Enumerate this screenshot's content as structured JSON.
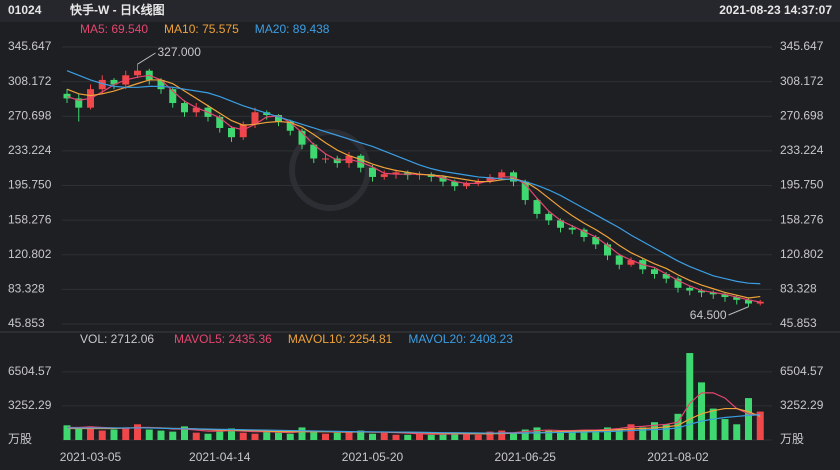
{
  "header": {
    "code": "01024",
    "title": "快手-W - 日K线图",
    "timestamp": "2021-08-23 14:37:07"
  },
  "chart_data": [
    {
      "type": "candlestick",
      "categories": [
        null,
        null,
        "2021-03-05",
        null,
        null,
        null,
        null,
        null,
        null,
        null,
        null,
        null,
        null,
        "2021-04-14",
        null,
        null,
        null,
        null,
        null,
        null,
        null,
        null,
        null,
        null,
        null,
        null,
        "2021-05-20",
        null,
        null,
        null,
        null,
        null,
        null,
        null,
        null,
        null,
        null,
        null,
        null,
        "2021-06-25",
        null,
        null,
        null,
        null,
        null,
        null,
        null,
        null,
        null,
        null,
        null,
        null,
        "2021-08-02",
        null,
        null,
        null,
        null,
        null,
        null,
        null
      ],
      "open": [
        295,
        290,
        280,
        300,
        310,
        305,
        315,
        320,
        310,
        300,
        285,
        275,
        280,
        270,
        258,
        248,
        262,
        275,
        272,
        265,
        255,
        240,
        225,
        225,
        220,
        228,
        215,
        205,
        208,
        210,
        207,
        208,
        205,
        200,
        195,
        198,
        200,
        205,
        210,
        200,
        180,
        165,
        158,
        150,
        148,
        140,
        132,
        120,
        110,
        115,
        105,
        100,
        95,
        85,
        82,
        80,
        78,
        75,
        72,
        68
      ],
      "high": [
        300,
        295,
        305,
        315,
        312,
        320,
        327,
        322,
        312,
        302,
        288,
        285,
        283,
        272,
        260,
        265,
        280,
        277,
        273,
        267,
        257,
        242,
        230,
        228,
        232,
        230,
        218,
        212,
        213,
        212,
        211,
        210,
        207,
        202,
        200,
        203,
        208,
        213,
        212,
        202,
        182,
        167,
        160,
        153,
        150,
        142,
        134,
        122,
        118,
        117,
        107,
        102,
        97,
        87,
        84,
        82,
        80,
        77,
        74,
        72
      ],
      "low": [
        285,
        265,
        278,
        295,
        300,
        300,
        312,
        305,
        295,
        280,
        270,
        270,
        265,
        253,
        243,
        245,
        258,
        267,
        260,
        250,
        235,
        220,
        220,
        215,
        215,
        210,
        200,
        202,
        203,
        202,
        202,
        200,
        195,
        190,
        192,
        195,
        198,
        203,
        195,
        175,
        160,
        153,
        145,
        143,
        135,
        127,
        115,
        105,
        108,
        100,
        95,
        90,
        80,
        77,
        75,
        73,
        70,
        67,
        64.5,
        66
      ],
      "close": [
        290,
        280,
        300,
        310,
        305,
        315,
        320,
        310,
        300,
        285,
        275,
        280,
        270,
        258,
        248,
        262,
        275,
        272,
        265,
        255,
        240,
        225,
        225,
        220,
        228,
        215,
        205,
        208,
        210,
        207,
        208,
        205,
        200,
        195,
        198,
        200,
        205,
        210,
        200,
        180,
        165,
        158,
        150,
        148,
        140,
        132,
        120,
        110,
        115,
        105,
        100,
        95,
        85,
        82,
        80,
        78,
        75,
        72,
        68,
        70
      ],
      "up_color": "#f0474a",
      "down_color": "#3fd76f",
      "series": [
        {
          "label": "MA5: 69.540",
          "color": "#e5466f",
          "values": [
            292,
            288,
            290,
            297,
            305,
            310,
            313,
            315,
            310,
            298,
            287,
            280,
            275,
            269,
            259,
            256,
            262,
            270,
            271,
            264,
            253,
            240,
            230,
            223,
            224,
            221,
            216,
            209,
            208,
            208,
            208,
            207,
            204,
            200,
            198,
            198,
            201,
            205,
            205,
            197,
            182,
            168,
            158,
            152,
            146,
            140,
            131,
            121,
            115,
            110,
            107,
            100,
            93,
            87,
            82,
            80,
            78,
            75,
            72,
            69.54
          ]
        },
        {
          "label": "MA10: 75.575",
          "color": "#f0a23a",
          "values": [
            300,
            295,
            293,
            295,
            298,
            302,
            306,
            310,
            310,
            306,
            298,
            290,
            282,
            274,
            266,
            261,
            262,
            264,
            265,
            264,
            259,
            251,
            242,
            234,
            228,
            224,
            219,
            215,
            212,
            210,
            208,
            207,
            206,
            204,
            202,
            200,
            200,
            202,
            203,
            200,
            192,
            182,
            172,
            163,
            155,
            148,
            140,
            131,
            123,
            117,
            111,
            106,
            99,
            93,
            88,
            84,
            80,
            77,
            74,
            75.575
          ]
        },
        {
          "label": "MA20: 89.438",
          "color": "#3b9ee3",
          "values": [
            320,
            315,
            310,
            306,
            303,
            302,
            302,
            303,
            303,
            302,
            300,
            298,
            296,
            292,
            287,
            282,
            278,
            274,
            270,
            266,
            262,
            258,
            254,
            250,
            246,
            242,
            238,
            233,
            228,
            223,
            218,
            214,
            211,
            209,
            207,
            205,
            204,
            203,
            202,
            200,
            196,
            191,
            185,
            178,
            171,
            164,
            157,
            150,
            142,
            135,
            128,
            121,
            114,
            108,
            103,
            98,
            95,
            92,
            90,
            89.438
          ]
        }
      ],
      "annotations": [
        "327.000",
        "64.500"
      ],
      "ylim": [
        45.853,
        345.647
      ],
      "yticks": [
        345.647,
        308.172,
        270.698,
        233.224,
        {
          "value": 195.75,
          "label": "195.750"
        },
        158.276,
        120.802,
        83.328,
        45.853
      ],
      "grid": true
    },
    {
      "type": "bar",
      "vol_label": "VOL: 2712.06",
      "values": [
        1400,
        1100,
        1300,
        900,
        1000,
        1200,
        1500,
        1000,
        900,
        800,
        1300,
        700,
        600,
        900,
        1100,
        700,
        600,
        800,
        700,
        600,
        1200,
        900,
        600,
        700,
        800,
        900,
        600,
        700,
        500,
        500,
        600,
        500,
        600,
        700,
        600,
        500,
        800,
        900,
        700,
        1000,
        1200,
        900,
        800,
        800,
        900,
        1000,
        1200,
        1100,
        1500,
        1200,
        1700,
        1500,
        2500,
        8300,
        5500,
        3000,
        2000,
        1500,
        4000,
        2712.06
      ],
      "series": [
        {
          "label": "MAVOL5: 2435.36",
          "color": "#e5466f",
          "values": [
            1200,
            1200,
            1250,
            1200,
            1150,
            1100,
            1200,
            1200,
            1150,
            1050,
            1050,
            950,
            850,
            850,
            900,
            850,
            800,
            800,
            750,
            700,
            800,
            800,
            800,
            750,
            750,
            800,
            750,
            750,
            700,
            650,
            600,
            560,
            560,
            580,
            600,
            580,
            620,
            700,
            700,
            800,
            900,
            950,
            900,
            900,
            950,
            950,
            1000,
            1100,
            1250,
            1300,
            1400,
            1500,
            1700,
            3500,
            4500,
            4500,
            4000,
            3000,
            2500,
            2435.36
          ]
        },
        {
          "label": "MAVOL10: 2254.81",
          "color": "#f0a23a",
          "values": [
            1100,
            1100,
            1100,
            1100,
            1100,
            1150,
            1150,
            1150,
            1150,
            1100,
            1100,
            1050,
            1000,
            950,
            950,
            900,
            900,
            850,
            800,
            800,
            800,
            800,
            800,
            780,
            760,
            760,
            760,
            760,
            740,
            720,
            700,
            680,
            650,
            630,
            620,
            600,
            600,
            620,
            640,
            660,
            700,
            750,
            800,
            830,
            860,
            880,
            920,
            980,
            1050,
            1100,
            1150,
            1250,
            1400,
            2000,
            2500,
            2800,
            3000,
            3000,
            2700,
            2254.81
          ]
        },
        {
          "label": "MAVOL20: 2408.23",
          "color": "#3b9ee3",
          "values": [
            1150,
            1150,
            1150,
            1150,
            1150,
            1150,
            1150,
            1150,
            1120,
            1100,
            1080,
            1060,
            1040,
            1020,
            1000,
            980,
            960,
            940,
            920,
            900,
            880,
            860,
            840,
            820,
            800,
            790,
            780,
            770,
            760,
            750,
            740,
            720,
            700,
            690,
            680,
            670,
            660,
            660,
            660,
            670,
            680,
            700,
            720,
            740,
            760,
            780,
            800,
            850,
            900,
            950,
            1000,
            1050,
            1150,
            1500,
            1800,
            2000,
            2150,
            2250,
            2350,
            2408.23
          ]
        }
      ],
      "ylim": [
        0,
        8400
      ],
      "yticks": [
        {
          "value": 0,
          "label": "万股"
        },
        3252.29,
        6504.57
      ],
      "grid": true
    }
  ]
}
